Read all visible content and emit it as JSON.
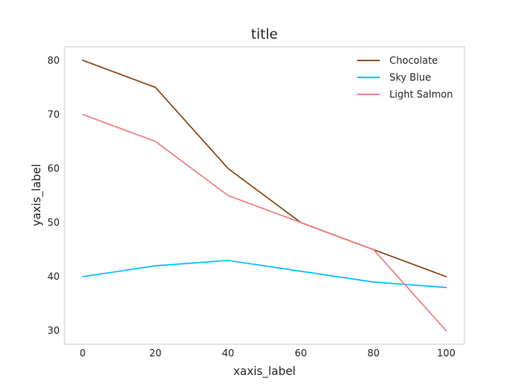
{
  "chart_data": {
    "type": "line",
    "title": "title",
    "xlabel": "xaxis_label",
    "ylabel": "yaxis_label",
    "x": [
      0,
      20,
      40,
      60,
      80,
      100
    ],
    "series": [
      {
        "name": "Chocolate",
        "color": "#8B4513",
        "values": [
          80,
          75,
          60,
          50,
          45,
          40
        ]
      },
      {
        "name": "Sky Blue",
        "color": "#00BFFF",
        "values": [
          40,
          42,
          43,
          41,
          39,
          38
        ]
      },
      {
        "name": "Light Salmon",
        "color": "#F08080",
        "values": [
          70,
          65,
          55,
          50,
          45,
          30
        ]
      }
    ],
    "xlim": [
      -5,
      105
    ],
    "ylim": [
      27.5,
      82.5
    ],
    "xticks": [
      "0",
      "20",
      "40",
      "60",
      "80",
      "100"
    ],
    "yticks": [
      "30",
      "40",
      "50",
      "60",
      "70",
      "80"
    ],
    "grid": false,
    "legend_position": "top-right"
  }
}
